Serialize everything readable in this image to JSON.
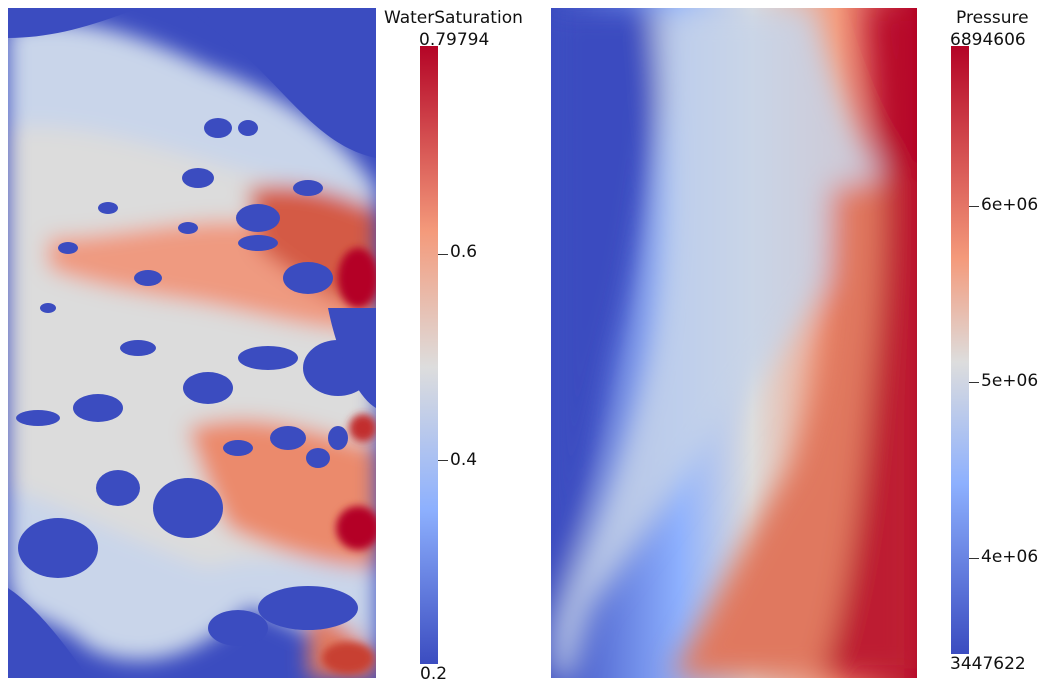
{
  "colormap": [
    "#3b4cc0",
    "#8db0fe",
    "#dddddd",
    "#f49a7b",
    "#b40426"
  ],
  "water_saturation": {
    "title": "WaterSaturation",
    "max_label": "0.79794",
    "min_label": "0.2",
    "tick_labels": [
      "0.6",
      "0.4"
    ]
  },
  "pressure": {
    "title": "Pressure",
    "max_label": "6894606",
    "min_label": "3447622",
    "tick_labels": [
      "6e+06",
      "5e+06",
      "4e+06"
    ]
  }
}
